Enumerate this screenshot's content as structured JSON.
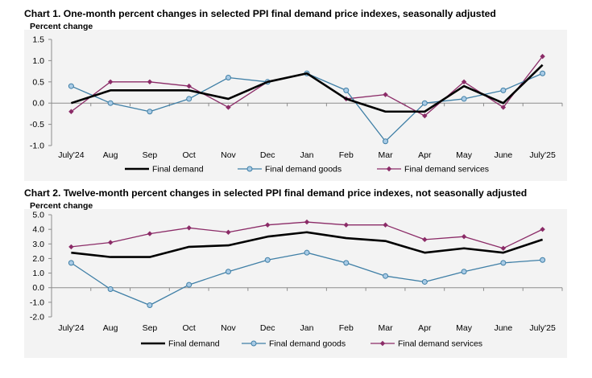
{
  "chart_data": [
    {
      "type": "line",
      "title": "Chart 1. One-month percent changes in selected PPI final demand price indexes, seasonally adjusted",
      "ylabel": "Percent change",
      "xlabel": "",
      "categories": [
        "July'24",
        "Aug",
        "Sep",
        "Oct",
        "Nov",
        "Dec",
        "Jan",
        "Feb",
        "Mar",
        "Apr",
        "May",
        "June",
        "July'25"
      ],
      "ylim": [
        -1.0,
        1.5
      ],
      "yticks": [
        "-1.0",
        "-0.5",
        "0.0",
        "0.5",
        "1.0",
        "1.5"
      ],
      "grid": false,
      "legend": "bottom",
      "series": [
        {
          "name": "Final demand",
          "color": "#000000",
          "marker": "none",
          "values": [
            0.0,
            0.3,
            0.3,
            0.3,
            0.1,
            0.5,
            0.7,
            0.1,
            -0.2,
            -0.2,
            0.4,
            0.0,
            0.9
          ]
        },
        {
          "name": "Final demand goods",
          "color": "#3f7fa6",
          "marker": "circle",
          "values": [
            0.4,
            0.0,
            -0.2,
            0.1,
            0.6,
            0.5,
            0.7,
            0.3,
            -0.9,
            0.0,
            0.1,
            0.3,
            0.7
          ]
        },
        {
          "name": "Final demand services",
          "color": "#8b2b67",
          "marker": "diamond",
          "values": [
            -0.2,
            0.5,
            0.5,
            0.4,
            -0.1,
            0.5,
            0.7,
            0.1,
            0.2,
            -0.3,
            0.5,
            -0.1,
            1.1
          ]
        }
      ]
    },
    {
      "type": "line",
      "title": "Chart 2. Twelve-month percent changes in selected PPI final demand price indexes, not seasonally adjusted",
      "ylabel": "Percent change",
      "xlabel": "",
      "categories": [
        "July'24",
        "Aug",
        "Sep",
        "Oct",
        "Nov",
        "Dec",
        "Jan",
        "Feb",
        "Mar",
        "Apr",
        "May",
        "June",
        "July'25"
      ],
      "ylim": [
        -2.0,
        5.0
      ],
      "yticks": [
        "-2.0",
        "-1.0",
        "0.0",
        "1.0",
        "2.0",
        "3.0",
        "4.0",
        "5.0"
      ],
      "grid": false,
      "legend": "bottom",
      "series": [
        {
          "name": "Final demand",
          "color": "#000000",
          "marker": "none",
          "values": [
            2.4,
            2.1,
            2.1,
            2.8,
            2.9,
            3.5,
            3.8,
            3.4,
            3.2,
            2.4,
            2.7,
            2.4,
            3.3
          ]
        },
        {
          "name": "Final demand goods",
          "color": "#3f7fa6",
          "marker": "circle",
          "values": [
            1.7,
            -0.1,
            -1.2,
            0.2,
            1.1,
            1.9,
            2.4,
            1.7,
            0.8,
            0.4,
            1.1,
            1.7,
            1.9
          ]
        },
        {
          "name": "Final demand services",
          "color": "#8b2b67",
          "marker": "diamond",
          "values": [
            2.8,
            3.1,
            3.7,
            4.1,
            3.8,
            4.3,
            4.5,
            4.3,
            4.3,
            3.3,
            3.5,
            2.7,
            4.0
          ]
        }
      ]
    }
  ]
}
